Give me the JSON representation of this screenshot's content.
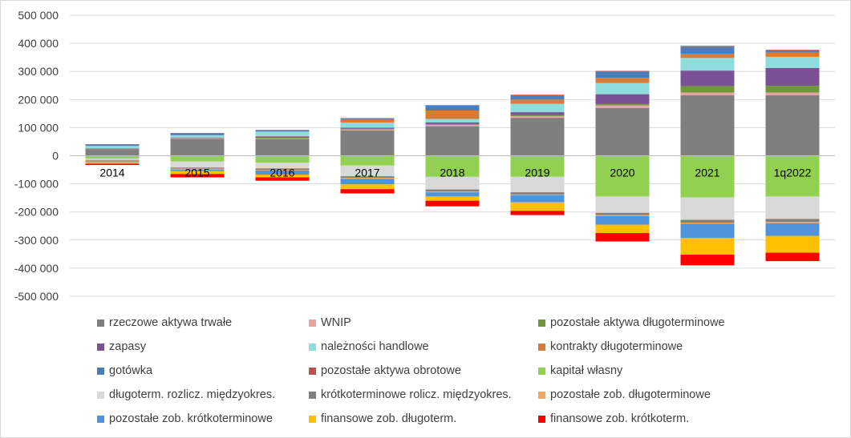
{
  "chart_data": {
    "type": "bar",
    "stacked": true,
    "categories": [
      "2014",
      "2015",
      "2016",
      "2017",
      "2018",
      "2019",
      "2020",
      "2021",
      "1q2022"
    ],
    "ylim": [
      -500000,
      500000
    ],
    "ytick_labels": [
      "500 000",
      "400 000",
      "300 000",
      "200 000",
      "100 000",
      "0",
      "-100 000",
      "-200 000",
      "-300 000",
      "-400 000",
      "-500 000"
    ],
    "ytick_values": [
      500000,
      400000,
      300000,
      200000,
      100000,
      0,
      -100000,
      -200000,
      -300000,
      -400000,
      -500000
    ],
    "grid": true,
    "legend_position": "bottom",
    "series": [
      {
        "name": "rzeczowe aktywa trwałe",
        "color": "#7f7f7f",
        "values": [
          24000,
          60000,
          60000,
          90000,
          105000,
          135000,
          170000,
          215000,
          215000
        ]
      },
      {
        "name": "WNIP",
        "color": "#e6a3a3",
        "values": [
          1000,
          2000,
          2000,
          4000,
          5000,
          6000,
          9000,
          10000,
          10000
        ]
      },
      {
        "name": "pozostałe aktywa długoterminowe",
        "color": "#70963a",
        "values": [
          1000,
          1000,
          2000,
          2000,
          3000,
          4000,
          5000,
          23000,
          24000
        ]
      },
      {
        "name": "zapasy",
        "color": "#7a5195",
        "values": [
          1000,
          2000,
          5000,
          4000,
          6000,
          10000,
          35000,
          55000,
          63000
        ]
      },
      {
        "name": "należności handlowe",
        "color": "#8fdcdc",
        "values": [
          8000,
          8000,
          17000,
          18000,
          12000,
          30000,
          40000,
          45000,
          40000
        ]
      },
      {
        "name": "kontrakty długoterminowe",
        "color": "#d87b36",
        "values": [
          0,
          0,
          0,
          10000,
          30000,
          15000,
          18000,
          15000,
          15000
        ]
      },
      {
        "name": "gotówka",
        "color": "#4a7ebb",
        "values": [
          5000,
          7000,
          5000,
          4000,
          17000,
          15000,
          23000,
          25000,
          8000
        ]
      },
      {
        "name": "pozostałe aktywa obrotowe",
        "color": "#c0504d",
        "values": [
          1000,
          1000,
          1000,
          2000,
          2000,
          2000,
          2000,
          3000,
          2000
        ]
      },
      {
        "name": "kapitał własny",
        "color": "#92d050",
        "values": [
          -10000,
          -20000,
          -25000,
          -35000,
          -75000,
          -75000,
          -145000,
          -148000,
          -145000
        ]
      },
      {
        "name": "długoterm. rozlicz. międzyokres.",
        "color": "#d9d9d9",
        "values": [
          -5000,
          -22000,
          -20000,
          -38000,
          -45000,
          -55000,
          -58000,
          -80000,
          -80000
        ]
      },
      {
        "name": "krótkoterminowe rolicz. międzyokres.",
        "color": "#808080",
        "values": [
          -2000,
          -4000,
          -5000,
          -6000,
          -7000,
          -8000,
          -8000,
          -10000,
          -10000
        ]
      },
      {
        "name": "pozostałe zob. długoterminowe",
        "color": "#f4a460",
        "values": [
          -3000,
          -4000,
          -2000,
          -3000,
          -3000,
          -3000,
          -4000,
          -4000,
          -5000
        ]
      },
      {
        "name": "pozostałe zob. krótkoterminowe",
        "color": "#4f94db",
        "values": [
          -3000,
          -5000,
          -15000,
          -20000,
          -15000,
          -25000,
          -30000,
          -50000,
          -45000
        ]
      },
      {
        "name": "finansowe zob. długoterm.",
        "color": "#ffc000",
        "values": [
          -5000,
          -10000,
          -10000,
          -17000,
          -15000,
          -30000,
          -30000,
          -60000,
          -60000
        ]
      },
      {
        "name": "finansowe zob. krótkoterm.",
        "color": "#ff0000",
        "values": [
          -5000,
          -12000,
          -12000,
          -15000,
          -20000,
          -15000,
          -30000,
          -38000,
          -30000
        ]
      }
    ]
  }
}
